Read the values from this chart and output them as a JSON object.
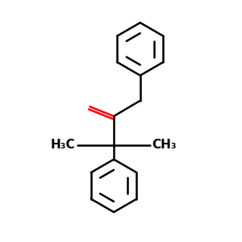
{
  "background_color": "#ffffff",
  "bond_color": "#000000",
  "oxygen_color": "#ff0000",
  "line_width": 1.8,
  "fig_size": [
    3.0,
    3.0
  ],
  "dpi": 100
}
